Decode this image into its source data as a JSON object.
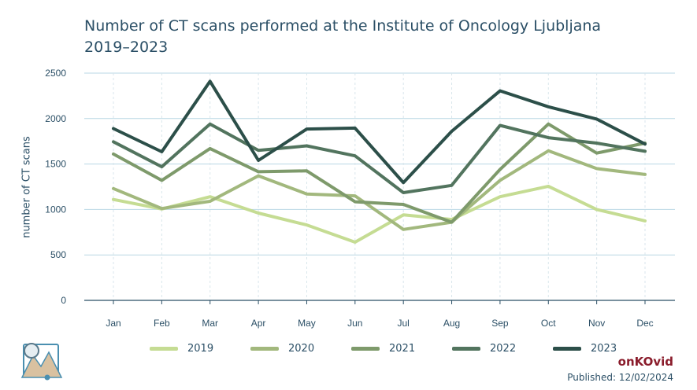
{
  "header": {
    "title_line1": "Number of CT scans performed at the Institute of Oncology Ljubljana",
    "title_line2": "2019–2023"
  },
  "footer": {
    "brand": "onKOvid",
    "published": "Published: 12/02/2024"
  },
  "logo": {
    "icon": "mountain-landscape-icon"
  },
  "chart_data": {
    "type": "line",
    "title": "Number of CT scans performed at the Institute of Oncology Ljubljana 2019–2023",
    "xlabel": "",
    "ylabel": "number of CT scans",
    "categories": [
      "Jan",
      "Feb",
      "Mar",
      "Apr",
      "May",
      "Jun",
      "Jul",
      "Aug",
      "Sep",
      "Oct",
      "Nov",
      "Dec"
    ],
    "ylim": [
      0,
      2500
    ],
    "yticks": [
      0,
      500,
      1000,
      1500,
      2000,
      2500
    ],
    "grid": {
      "horizontal": true,
      "vertical": true
    },
    "legend_position": "bottom",
    "series": [
      {
        "name": "2019",
        "color": "#c5dc93",
        "values": [
          1110,
          1005,
          1140,
          960,
          830,
          640,
          940,
          890,
          1140,
          1255,
          1000,
          875
        ]
      },
      {
        "name": "2020",
        "color": "#a2b87d",
        "values": [
          1230,
          1010,
          1090,
          1370,
          1170,
          1150,
          780,
          860,
          1320,
          1645,
          1450,
          1385
        ]
      },
      {
        "name": "2021",
        "color": "#7e9a6b",
        "values": [
          1610,
          1320,
          1670,
          1415,
          1425,
          1085,
          1055,
          860,
          1440,
          1940,
          1620,
          1730
        ]
      },
      {
        "name": "2022",
        "color": "#52745e",
        "values": [
          1745,
          1470,
          1940,
          1650,
          1700,
          1590,
          1185,
          1265,
          1925,
          1790,
          1730,
          1640
        ]
      },
      {
        "name": "2023",
        "color": "#2c4f49",
        "values": [
          1890,
          1635,
          2410,
          1540,
          1885,
          1895,
          1295,
          1860,
          2305,
          2130,
          1995,
          1720
        ]
      }
    ]
  }
}
